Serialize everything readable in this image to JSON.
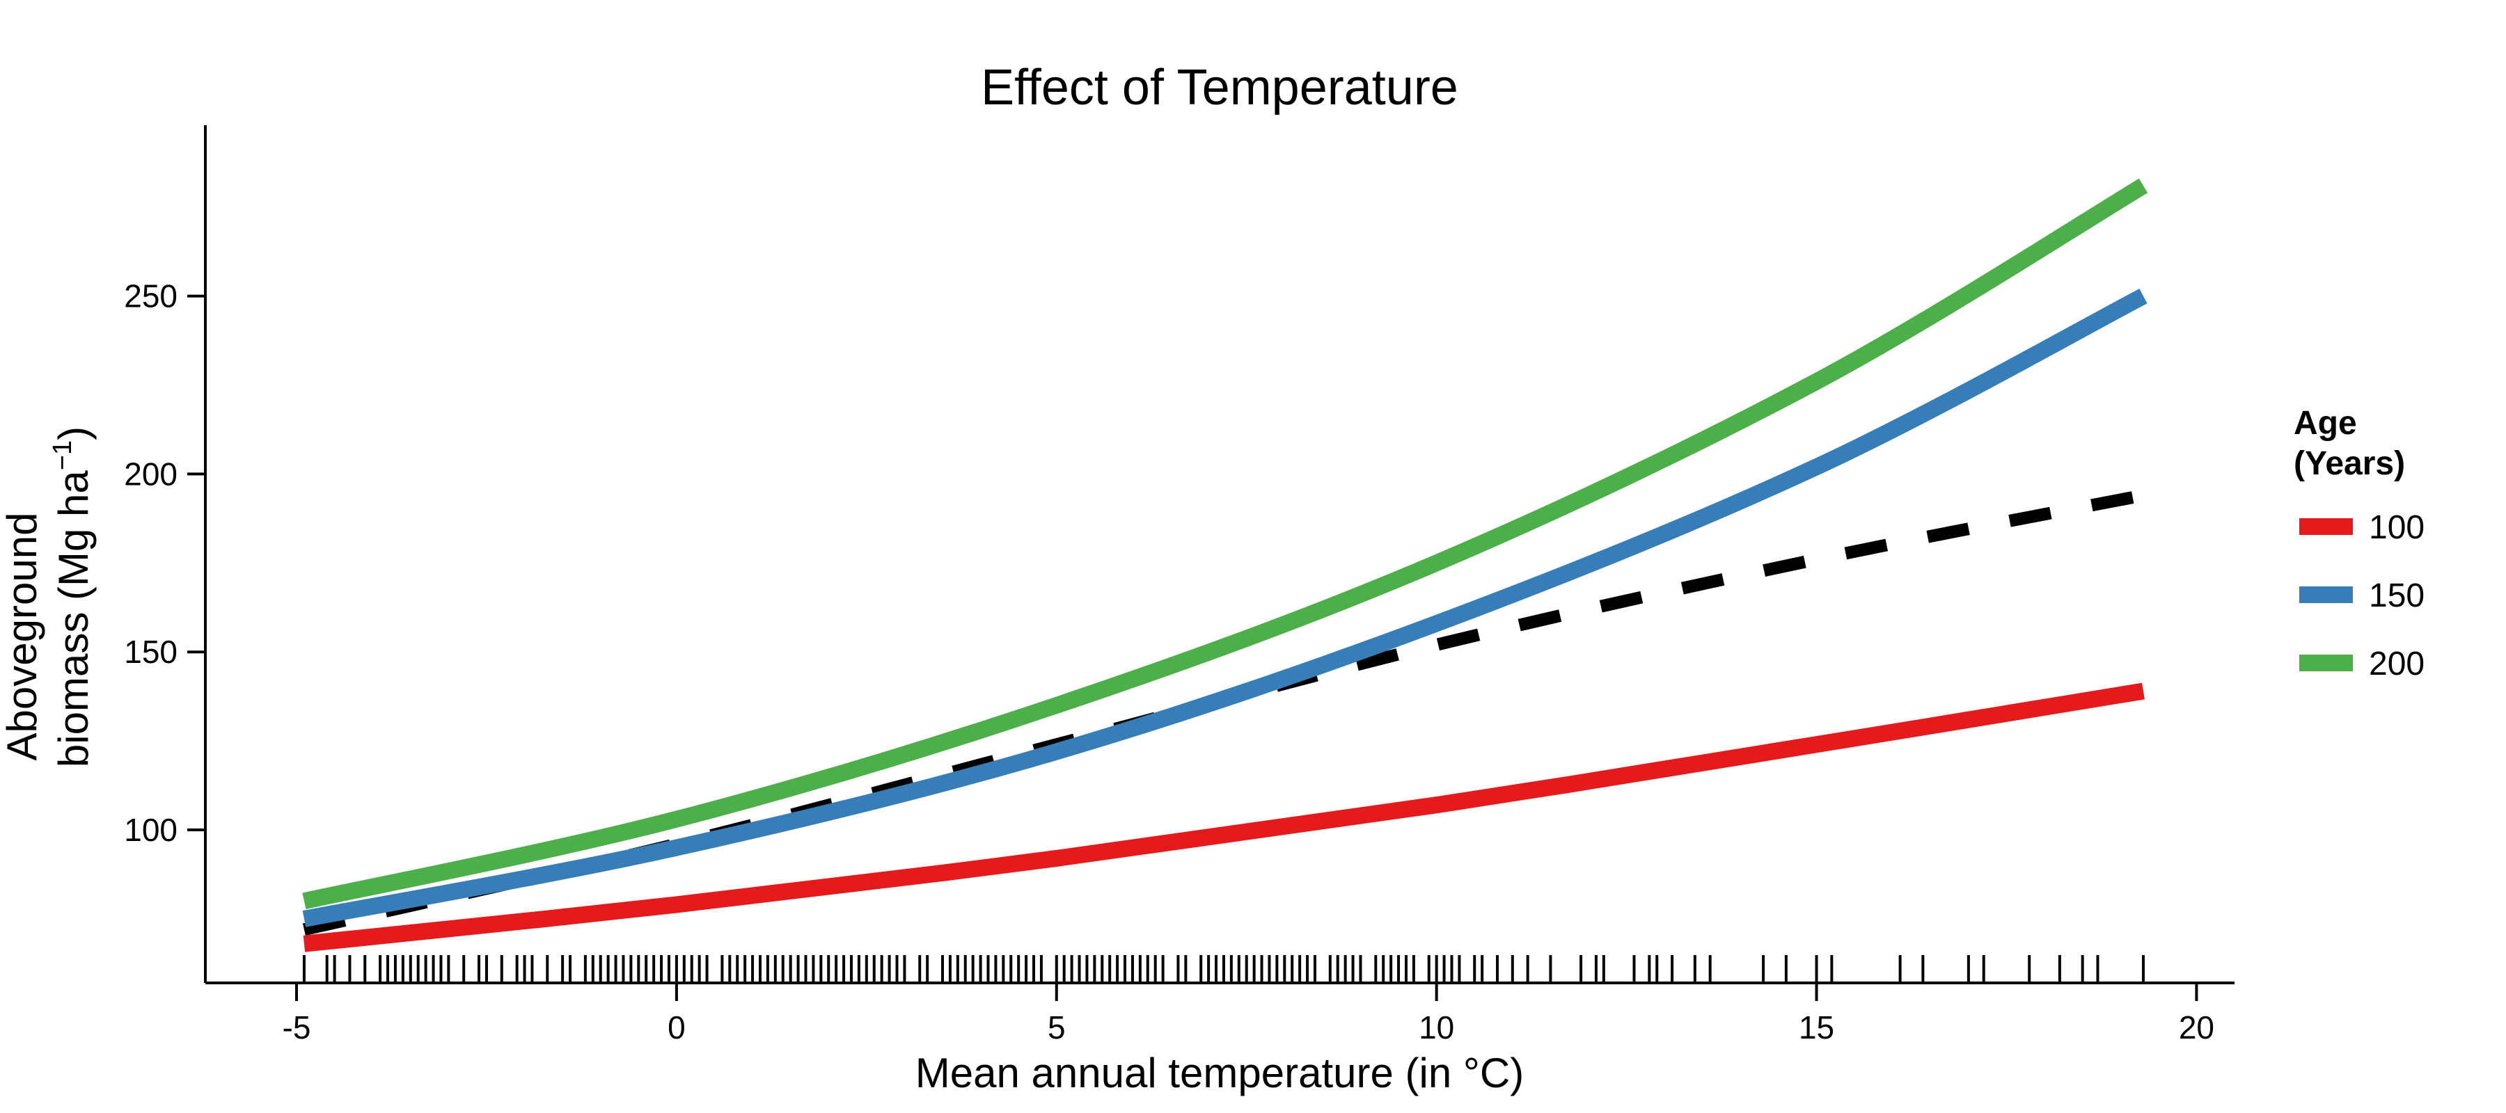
{
  "chart_data": {
    "type": "line",
    "title": "Effect of Temperature",
    "xlabel": "Mean annual temperature (in °C)",
    "ylabel_line1": "Aboveground",
    "ylabel_line2": "biomass (Mg  ha",
    "ylabel_sup": "−1",
    "ylabel_close": ")",
    "xlim": [
      -6.2,
      20.5
    ],
    "ylim": [
      57,
      298
    ],
    "x_ticks": [
      -5,
      0,
      5,
      10,
      15,
      20
    ],
    "x_tick_labels": [
      "-5",
      "0",
      "5",
      "10",
      "15",
      "20"
    ],
    "y_ticks": [
      100,
      150,
      200,
      250
    ],
    "y_tick_labels": [
      "100",
      "150",
      "200",
      "250"
    ],
    "grid": false,
    "legend": {
      "title_line1": "Age",
      "title_line2": "(Years)",
      "placement": "right"
    },
    "series": [
      {
        "name": "100",
        "color": "#E41A1C",
        "style": "solid",
        "x": [
          -4.9,
          0,
          5,
          10,
          15,
          19.3
        ],
        "y": [
          68,
          79,
          92,
          107,
          124,
          139
        ]
      },
      {
        "name": "150",
        "color": "#377EB8",
        "style": "solid",
        "x": [
          -4.9,
          0,
          5,
          10,
          15,
          19.3
        ],
        "y": [
          75,
          95,
          122,
          158,
          202,
          250
        ]
      },
      {
        "name": "200",
        "color": "#4DAF4A",
        "style": "solid",
        "x": [
          -4.9,
          0,
          5,
          10,
          15,
          19.3
        ],
        "y": [
          80,
          103,
          135,
          175,
          226,
          281
        ]
      },
      {
        "color": "#000000",
        "style": "dashed",
        "x": [
          -4.9,
          0,
          5,
          10,
          15,
          19.3
        ],
        "y": [
          72,
          96,
          124,
          152,
          176,
          194
        ]
      }
    ],
    "rug_x": [
      -4.9,
      -4.6,
      -4.5,
      -4.3,
      -4.1,
      -3.9,
      -3.8,
      -3.7,
      -3.6,
      -3.5,
      -3.4,
      -3.3,
      -3.2,
      -3.1,
      -3.0,
      -2.8,
      -2.6,
      -2.5,
      -2.3,
      -2.1,
      -2.0,
      -1.9,
      -1.7,
      -1.5,
      -1.4,
      -1.2,
      -1.1,
      -1.0,
      -0.9,
      -0.8,
      -0.7,
      -0.6,
      -0.5,
      -0.4,
      -0.3,
      -0.2,
      -0.1,
      0.0,
      0.1,
      0.2,
      0.3,
      0.4,
      0.6,
      0.7,
      0.8,
      0.9,
      1.0,
      1.1,
      1.2,
      1.3,
      1.4,
      1.5,
      1.6,
      1.7,
      1.8,
      1.9,
      2.0,
      2.1,
      2.2,
      2.3,
      2.4,
      2.5,
      2.6,
      2.7,
      2.8,
      2.9,
      3.0,
      3.2,
      3.3,
      3.5,
      3.6,
      3.7,
      3.8,
      3.9,
      4.0,
      4.1,
      4.2,
      4.3,
      4.4,
      4.5,
      4.6,
      4.7,
      4.8,
      5.0,
      5.1,
      5.2,
      5.3,
      5.4,
      5.5,
      5.6,
      5.7,
      5.8,
      5.9,
      6.0,
      6.1,
      6.2,
      6.3,
      6.4,
      6.6,
      6.7,
      6.9,
      7.0,
      7.1,
      7.2,
      7.3,
      7.4,
      7.5,
      7.6,
      7.7,
      7.8,
      7.9,
      8.0,
      8.1,
      8.2,
      8.3,
      8.4,
      8.6,
      8.7,
      8.8,
      8.9,
      9.0,
      9.2,
      9.3,
      9.4,
      9.5,
      9.6,
      9.7,
      9.9,
      10.0,
      10.1,
      10.2,
      10.3,
      10.5,
      10.6,
      10.8,
      11.0,
      11.2,
      11.5,
      11.9,
      12.1,
      12.2,
      12.6,
      12.8,
      12.9,
      13.1,
      13.4,
      13.6,
      14.3,
      14.6,
      15.0,
      15.2,
      16.1,
      16.4,
      17.0,
      17.2,
      17.8,
      18.2,
      18.5,
      18.7,
      19.3
    ]
  }
}
